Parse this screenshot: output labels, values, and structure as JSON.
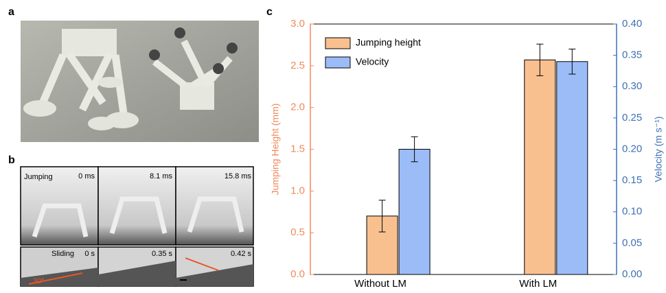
{
  "panel_labels": [
    "a",
    "b",
    "c"
  ],
  "frames": [
    {
      "label": "Jumping",
      "time": "0 ms"
    },
    {
      "time": "8.1 ms"
    },
    {
      "time": "15.8 ms"
    },
    {
      "label": "Sliding",
      "time": "0 s"
    },
    {
      "time": "0.35 s"
    },
    {
      "time": "0.42 s"
    }
  ],
  "angle_label": "30°",
  "chart_data": {
    "type": "bar",
    "categories": [
      "Without LM",
      "With LM"
    ],
    "ylabel": "Jumping Height (mm)",
    "y2label": "Velocity (m s⁻¹)",
    "series": [
      {
        "name": "Jumping height",
        "color": "#f9c08f",
        "values": [
          0.7,
          2.57
        ],
        "errors": [
          0.19,
          0.19
        ]
      },
      {
        "name": "Velocity",
        "color": "#9bbcf7",
        "axis": "y2",
        "values": [
          0.2,
          0.34
        ],
        "errors": [
          0.02,
          0.02
        ]
      }
    ],
    "ylim": [
      0,
      3
    ],
    "yticks": [
      {
        "value": 0,
        "label": "0.0"
      },
      0.5,
      {
        "value": 1,
        "label": "1.0"
      },
      1.5,
      {
        "value": 2,
        "label": "2.0"
      },
      2.5,
      {
        "value": 3,
        "label": "3.0"
      }
    ],
    "y2lim": [
      0,
      0.4
    ],
    "y2ticks": [
      {
        "value": 0,
        "label": "0.00"
      },
      0.05,
      {
        "value": 0.1,
        "label": "0.10"
      },
      0.15,
      {
        "value": 0.2,
        "label": "0.20"
      },
      0.25,
      {
        "value": 0.3,
        "label": "0.30"
      },
      0.35,
      {
        "value": 0.4,
        "label": "0.40"
      }
    ],
    "y_color": "#f0895a",
    "y2_color": "#3d6fb5",
    "legend": "upper left"
  }
}
